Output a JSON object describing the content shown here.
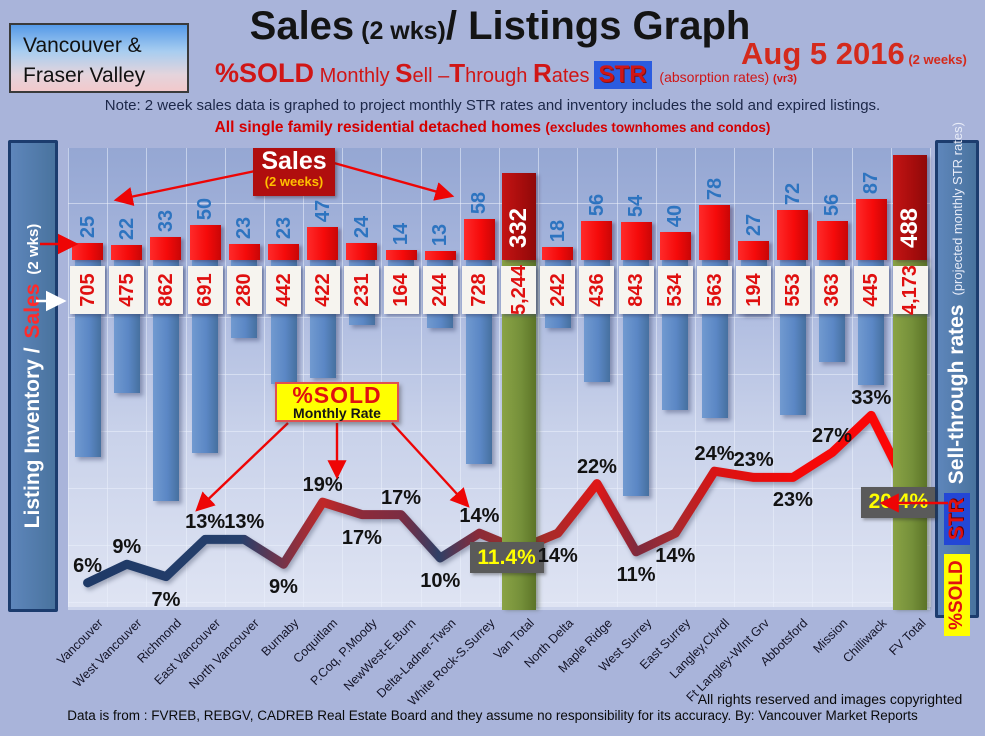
{
  "header": {
    "region_box": {
      "line1": "Vancouver &",
      "line2": "Fraser Valley"
    },
    "title_sales": "Sales",
    "title_2wks": " (2 wks)",
    "title_rest": "/ Listings Graph",
    "date": "Aug 5 2016",
    "date_suffix": " (2 weeks)",
    "subtitle": {
      "pctsold": "%SOLD",
      "monthly": " Monthly ",
      "sell": "Sell",
      "dash": " –",
      "through": "Through",
      "rates": "Rates",
      "str_chip": "STR",
      "absorption": " (absorption rates) ",
      "vr3": "(vr3)"
    },
    "note": "Note: 2 week sales data is graphed to project monthly STR rates and inventory includes the sold and expired listings.",
    "subtitle2_main": "All single family residential detached homes ",
    "subtitle2_paren": "(excludes townhomes and condos)"
  },
  "left_axis": {
    "part1": "Listing Inventory /",
    "part2": "Sales",
    "part3": "(2  wks)"
  },
  "right_axis": {
    "pctsold_chip": "%SOLD",
    "str_chip": "STR",
    "label": "Sell-through rates",
    "sublabel": "(projected monthly STR rates)"
  },
  "annotations": {
    "sales_callout": {
      "title": "Sales",
      "subtitle": "(2 weeks)"
    },
    "pctsold_callout": {
      "title": "%SOLD",
      "subtitle": "Monthly Rate"
    }
  },
  "footer": {
    "rights": "All rights reserved and  images copyrighted",
    "source": "Data is from : FVREB, REBGV, CADREB Real Estate Board and they assume no responsibility for its accuracy. By: Vancouver Market Reports"
  },
  "chart_data": {
    "type": "combo-bar-line",
    "title": "Sales (2 wks)/ Listings Graph",
    "date": "Aug 5 2016 (2 weeks)",
    "legend": [
      "Sales (2 weeks)",
      "Listing Inventory",
      "%SOLD Monthly Sell-Through Rate (STR)"
    ],
    "y_left_label": "Listing Inventory / Sales (2 wks)",
    "y_right_label": "Sell-through rates (projected monthly STR rates)",
    "grid": true,
    "colors": {
      "sales_bar": "#f50a0a",
      "total_sales_bar": "#a80d0d",
      "inventory_bar": "#5b87c5",
      "total_inventory_bar": "#75903a",
      "line_start": "#1d3866",
      "line_end": "#ff0505",
      "rate_box_bg": "#5a5a5a",
      "rate_box_text": "#ffff00",
      "accent_red": "#d42a1c",
      "chip_blue": "#2b5ce0",
      "chip_yellow": "#ffff00"
    },
    "layout": {
      "total_bar_heights": [
        87,
        105
      ]
    },
    "categories": [
      {
        "label": "Vancouver",
        "sales": 25,
        "inventory": 705,
        "inventory_display": "705",
        "pct": 6,
        "pct_display": "6%",
        "pct_side": "above",
        "total": false
      },
      {
        "label": "West Vancouver",
        "sales": 22,
        "inventory": 475,
        "inventory_display": "475",
        "pct": 9,
        "pct_display": "9%",
        "pct_side": "above",
        "total": false
      },
      {
        "label": "Richmond",
        "sales": 33,
        "inventory": 862,
        "inventory_display": "862",
        "pct": 7,
        "pct_display": "7%",
        "pct_side": "below",
        "total": false
      },
      {
        "label": "East Vancouver",
        "sales": 50,
        "inventory": 691,
        "inventory_display": "691",
        "pct": 13,
        "pct_display": "13%",
        "pct_side": "above",
        "total": false
      },
      {
        "label": "North Vancouver",
        "sales": 23,
        "inventory": 280,
        "inventory_display": "280",
        "pct": 13,
        "pct_display": "13%",
        "pct_side": "above",
        "total": false
      },
      {
        "label": "Burnaby",
        "sales": 23,
        "inventory": 442,
        "inventory_display": "442",
        "pct": 9,
        "pct_display": "9%",
        "pct_side": "below",
        "total": false
      },
      {
        "label": "Coquitlam",
        "sales": 47,
        "inventory": 422,
        "inventory_display": "422",
        "pct": 19,
        "pct_display": "19%",
        "pct_side": "above",
        "total": false
      },
      {
        "label": "P.Coq, P.Moody",
        "sales": 24,
        "inventory": 231,
        "inventory_display": "231",
        "pct": 17,
        "pct_display": "17%",
        "pct_side": "below",
        "total": false
      },
      {
        "label": "NewWest-E.Burn",
        "sales": 14,
        "inventory": 164,
        "inventory_display": "164",
        "pct": 17,
        "pct_display": "17%",
        "pct_side": "above",
        "total": false
      },
      {
        "label": "Delta-Ladner-Twsn",
        "sales": 13,
        "inventory": 244,
        "inventory_display": "244",
        "pct": 10,
        "pct_display": "10%",
        "pct_side": "below",
        "total": false
      },
      {
        "label": "White Rock-S.Surrey",
        "sales": 58,
        "inventory": 728,
        "inventory_display": "728",
        "pct": 14,
        "pct_display": "14%",
        "pct_side": "above",
        "total": false
      },
      {
        "label": "Van Total",
        "sales": 332,
        "inventory": 5244,
        "inventory_display": "5,244",
        "pct": 11.4,
        "pct_display": "11.4%",
        "pct_side": "box",
        "total": true
      },
      {
        "label": "North Delta",
        "sales": 18,
        "inventory": 242,
        "inventory_display": "242",
        "pct": 14,
        "pct_display": "14%",
        "pct_side": "below",
        "total": false
      },
      {
        "label": "Maple Ridge",
        "sales": 56,
        "inventory": 436,
        "inventory_display": "436",
        "pct": 22,
        "pct_display": "22%",
        "pct_side": "above",
        "total": false
      },
      {
        "label": "West Surrey",
        "sales": 54,
        "inventory": 843,
        "inventory_display": "843",
        "pct": 11,
        "pct_display": "11%",
        "pct_side": "below",
        "total": false
      },
      {
        "label": "East Surrey",
        "sales": 40,
        "inventory": 534,
        "inventory_display": "534",
        "pct": 14,
        "pct_display": "14%",
        "pct_side": "below",
        "total": false
      },
      {
        "label": "Langley,Clvrdl",
        "sales": 78,
        "inventory": 563,
        "inventory_display": "563",
        "pct": 24,
        "pct_display": "24%",
        "pct_side": "above",
        "total": false
      },
      {
        "label": "Ft Langley-Wlnt Grv",
        "sales": 27,
        "inventory": 194,
        "inventory_display": "194",
        "pct": 23,
        "pct_display": "23%",
        "pct_side": "above",
        "total": false
      },
      {
        "label": "Abbotsford",
        "sales": 72,
        "inventory": 553,
        "inventory_display": "553",
        "pct": 23,
        "pct_display": "23%",
        "pct_side": "below",
        "total": false
      },
      {
        "label": "Mission",
        "sales": 56,
        "inventory": 363,
        "inventory_display": "363",
        "pct": 27,
        "pct_display": "27%",
        "pct_side": "above",
        "total": false
      },
      {
        "label": "Chilliwack",
        "sales": 87,
        "inventory": 445,
        "inventory_display": "445",
        "pct": 33,
        "pct_display": "33%",
        "pct_side": "above",
        "total": false
      },
      {
        "label": "FV Total",
        "sales": 488,
        "inventory": 4173,
        "inventory_display": "4,173",
        "pct": 20.4,
        "pct_display": "20.4%",
        "pct_side": "box",
        "total": true
      }
    ]
  }
}
